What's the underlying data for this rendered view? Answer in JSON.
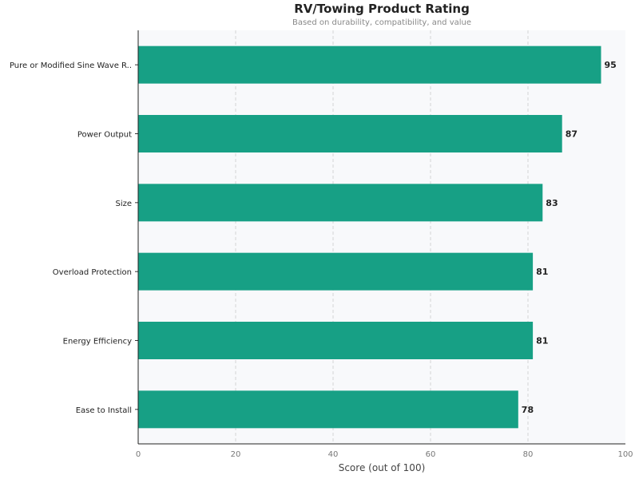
{
  "chart_data": {
    "type": "bar",
    "orientation": "horizontal",
    "title": "RV/Towing Product Rating",
    "subtitle": "Based on durability, compatibility, and value",
    "xlabel": "Score (out of 100)",
    "ylabel": "",
    "xlim": [
      0,
      100
    ],
    "xticks": [
      0,
      20,
      40,
      60,
      80,
      100
    ],
    "grid": "vertical dashed",
    "categories": [
      "Pure or Modified Sine Wave R..",
      "Power Output",
      "Size",
      "Overload Protection",
      "Energy Efficiency",
      "Ease to Install"
    ],
    "values": [
      95,
      87,
      83,
      81,
      81,
      78
    ],
    "colors": {
      "bar": "#17a085",
      "plot_bg": "#f8f9fb",
      "grid": "#cccccc"
    }
  }
}
